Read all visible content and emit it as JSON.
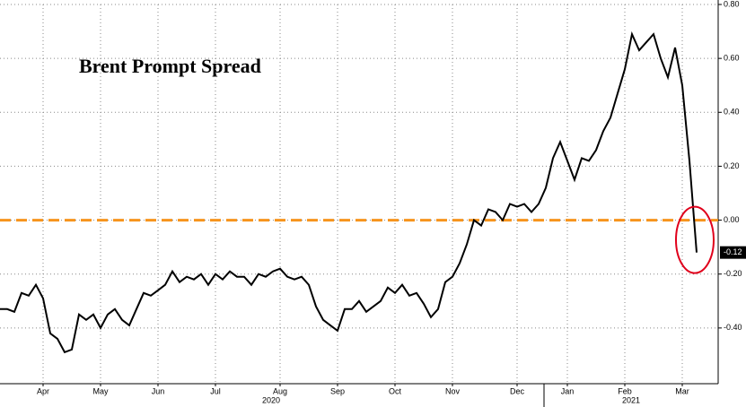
{
  "chart_data": {
    "type": "line",
    "title": "Brent Prompt Spread",
    "series": [
      {
        "name": "Brent Prompt Spread",
        "color": "#000000",
        "values": [
          -0.33,
          -0.33,
          -0.34,
          -0.27,
          -0.28,
          -0.24,
          -0.29,
          -0.42,
          -0.44,
          -0.49,
          -0.48,
          -0.35,
          -0.37,
          -0.35,
          -0.4,
          -0.35,
          -0.33,
          -0.37,
          -0.39,
          -0.33,
          -0.27,
          -0.28,
          -0.26,
          -0.24,
          -0.19,
          -0.23,
          -0.21,
          -0.22,
          -0.2,
          -0.24,
          -0.2,
          -0.22,
          -0.19,
          -0.21,
          -0.21,
          -0.24,
          -0.2,
          -0.21,
          -0.19,
          -0.18,
          -0.21,
          -0.22,
          -0.21,
          -0.24,
          -0.32,
          -0.37,
          -0.39,
          -0.41,
          -0.33,
          -0.33,
          -0.3,
          -0.34,
          -0.32,
          -0.3,
          -0.25,
          -0.27,
          -0.24,
          -0.28,
          -0.27,
          -0.31,
          -0.36,
          -0.33,
          -0.23,
          -0.21,
          -0.16,
          -0.09,
          0.0,
          -0.02,
          0.04,
          0.03,
          0.0,
          0.06,
          0.05,
          0.06,
          0.03,
          0.06,
          0.12,
          0.23,
          0.29,
          0.22,
          0.15,
          0.23,
          0.22,
          0.26,
          0.33,
          0.38,
          0.47,
          0.56,
          0.69,
          0.63,
          0.66,
          0.69,
          0.6,
          0.53,
          0.64,
          0.5,
          0.22,
          -0.12
        ]
      }
    ],
    "xticks": [
      {
        "value": 6,
        "label": "Apr"
      },
      {
        "value": 14,
        "label": "May"
      },
      {
        "value": 22,
        "label": "Jun"
      },
      {
        "value": 30,
        "label": "Jul"
      },
      {
        "value": 39,
        "label": "Aug"
      },
      {
        "value": 47,
        "label": "Sep"
      },
      {
        "value": 55,
        "label": "Oct"
      },
      {
        "value": 63,
        "label": "Nov"
      },
      {
        "value": 72,
        "label": "Dec"
      },
      {
        "value": 79,
        "label": "Jan"
      },
      {
        "value": 87,
        "label": "Feb"
      },
      {
        "value": 95,
        "label": "Mar"
      }
    ],
    "years": [
      "2020",
      "2021"
    ],
    "ylim": [
      -0.6,
      0.8
    ],
    "yticks": [
      {
        "value": 0.8,
        "label": "0.80"
      },
      {
        "value": 0.6,
        "label": "0.60"
      },
      {
        "value": 0.4,
        "label": "0.40"
      },
      {
        "value": 0.2,
        "label": "0.20"
      },
      {
        "value": 0,
        "label": "0.00"
      },
      {
        "value": -0.2,
        "label": "-0.20"
      },
      {
        "value": -0.4,
        "label": "-0.40"
      }
    ],
    "reference_line": {
      "value": 0,
      "color": "#f7941d"
    },
    "grid": true
  }
}
